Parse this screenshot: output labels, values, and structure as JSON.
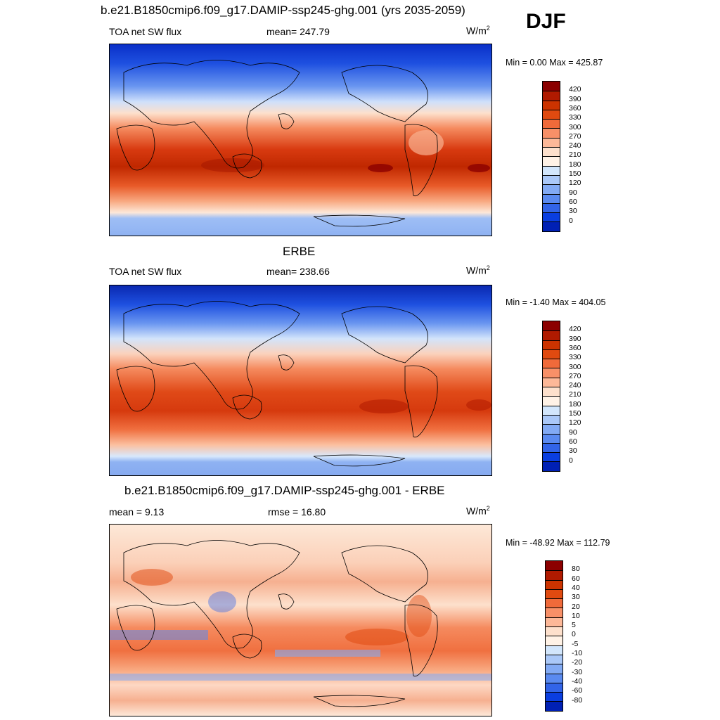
{
  "season": "DJF",
  "panels": [
    {
      "title": "b.e21.B1850cmip6.f09_g17.DAMIP-ssp245-ghg.001 (yrs 2035-2059)",
      "left_label": "TOA net SW flux",
      "center_label": "mean= 247.79",
      "units": "W/m",
      "units_sup": "2",
      "minmax": "Min =   0.00 Max = 425.87",
      "colorbar": {
        "ticks": [
          "420",
          "390",
          "360",
          "330",
          "300",
          "270",
          "240",
          "210",
          "180",
          "150",
          "120",
          "90",
          "60",
          "30",
          "0"
        ],
        "colors": [
          "#8b0000",
          "#b01a00",
          "#cc3300",
          "#e04a10",
          "#f06a3a",
          "#f89068",
          "#fdb898",
          "#fde0cc",
          "#fff2e6",
          "#d2e6fc",
          "#aac8f8",
          "#82aaf4",
          "#5a8af0",
          "#3264e8",
          "#0a3ee0",
          "#0020b4"
        ]
      }
    },
    {
      "title": "ERBE",
      "left_label": "TOA net SW flux",
      "center_label": "mean= 238.66",
      "units": "W/m",
      "units_sup": "2",
      "minmax": "Min =  -1.40 Max = 404.05",
      "colorbar": {
        "ticks": [
          "420",
          "390",
          "360",
          "330",
          "300",
          "270",
          "240",
          "210",
          "180",
          "150",
          "120",
          "90",
          "60",
          "30",
          "0"
        ],
        "colors": [
          "#8b0000",
          "#b01a00",
          "#cc3300",
          "#e04a10",
          "#f06a3a",
          "#f89068",
          "#fdb898",
          "#fde0cc",
          "#fff2e6",
          "#d2e6fc",
          "#aac8f8",
          "#82aaf4",
          "#5a8af0",
          "#3264e8",
          "#0a3ee0",
          "#0020b4"
        ]
      }
    },
    {
      "title": "b.e21.B1850cmip6.f09_g17.DAMIP-ssp245-ghg.001 - ERBE",
      "left_label": "mean =   9.13",
      "center_label": "rmse =  16.80",
      "units": "W/m",
      "units_sup": "2",
      "minmax": "Min = -48.92 Max = 112.79",
      "colorbar": {
        "ticks": [
          "80",
          "60",
          "40",
          "30",
          "20",
          "10",
          "5",
          "0",
          "-5",
          "-10",
          "-20",
          "-30",
          "-40",
          "-60",
          "-80"
        ],
        "colors": [
          "#8b0000",
          "#b01a00",
          "#cc3300",
          "#e04a10",
          "#f06a3a",
          "#f89068",
          "#fdb898",
          "#fde0cc",
          "#fff2e6",
          "#d2e6fc",
          "#aac8f8",
          "#82aaf4",
          "#5a8af0",
          "#3264e8",
          "#0a3ee0",
          "#0020b4"
        ]
      }
    }
  ],
  "chart_data": [
    {
      "type": "heatmap",
      "title": "b.e21.B1850cmip6.f09_g17.DAMIP-ssp245-ghg.001 (yrs 2035-2059)",
      "variable": "TOA net SW flux",
      "units": "W/m2",
      "mean": 247.79,
      "min": 0.0,
      "max": 425.87,
      "levels": [
        0,
        30,
        60,
        90,
        120,
        150,
        180,
        210,
        240,
        270,
        300,
        330,
        360,
        390,
        420
      ]
    },
    {
      "type": "heatmap",
      "title": "ERBE",
      "variable": "TOA net SW flux",
      "units": "W/m2",
      "mean": 238.66,
      "min": -1.4,
      "max": 404.05,
      "levels": [
        0,
        30,
        60,
        90,
        120,
        150,
        180,
        210,
        240,
        270,
        300,
        330,
        360,
        390,
        420
      ]
    },
    {
      "type": "heatmap",
      "title": "b.e21.B1850cmip6.f09_g17.DAMIP-ssp245-ghg.001 - ERBE",
      "units": "W/m2",
      "mean": 9.13,
      "rmse": 16.8,
      "min": -48.92,
      "max": 112.79,
      "levels": [
        -80,
        -60,
        -40,
        -30,
        -20,
        -10,
        -5,
        0,
        5,
        10,
        20,
        30,
        40,
        60,
        80
      ]
    }
  ]
}
